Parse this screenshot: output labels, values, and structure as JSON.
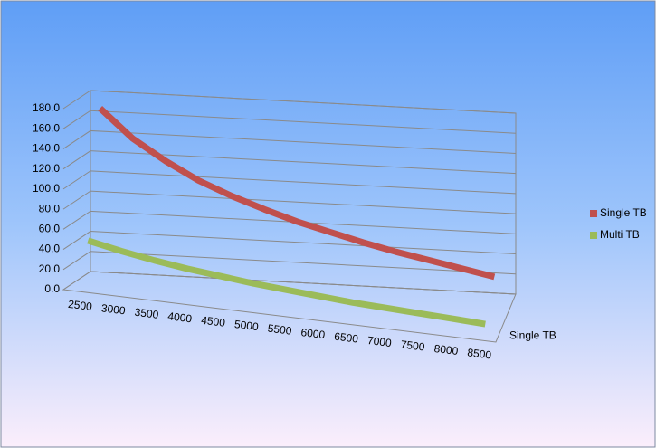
{
  "chart_data": {
    "type": "line3d",
    "categories": [
      "2500",
      "3000",
      "3500",
      "4000",
      "4500",
      "5000",
      "5500",
      "6000",
      "6500",
      "7000",
      "7500",
      "8000",
      "8500"
    ],
    "series": [
      {
        "name": "Single TB",
        "color": "#c0504d",
        "values": [
          168,
          140,
          120,
          103,
          90,
          79,
          69,
          61,
          53,
          46,
          40,
          34,
          28
        ]
      },
      {
        "name": "Multi TB",
        "color": "#9bbb59",
        "values": [
          45,
          38,
          32,
          27,
          23,
          19,
          16,
          13,
          10,
          8,
          6,
          4,
          2
        ]
      }
    ],
    "depth_categories": [
      "Single TB"
    ],
    "ylim": [
      0,
      180
    ],
    "yticks": [
      {
        "value": 0,
        "label": "0.0"
      },
      {
        "value": 20,
        "label": "20.0"
      },
      {
        "value": 40,
        "label": "40.0"
      },
      {
        "value": 60,
        "label": "60.0"
      },
      {
        "value": 80,
        "label": "80.0"
      },
      {
        "value": 100,
        "label": "100.0"
      },
      {
        "value": 120,
        "label": "120.0"
      },
      {
        "value": 140,
        "label": "140.0"
      },
      {
        "value": 160,
        "label": "160.0"
      },
      {
        "value": 180,
        "label": "180.0"
      }
    ],
    "grid": true,
    "legend": "right"
  }
}
